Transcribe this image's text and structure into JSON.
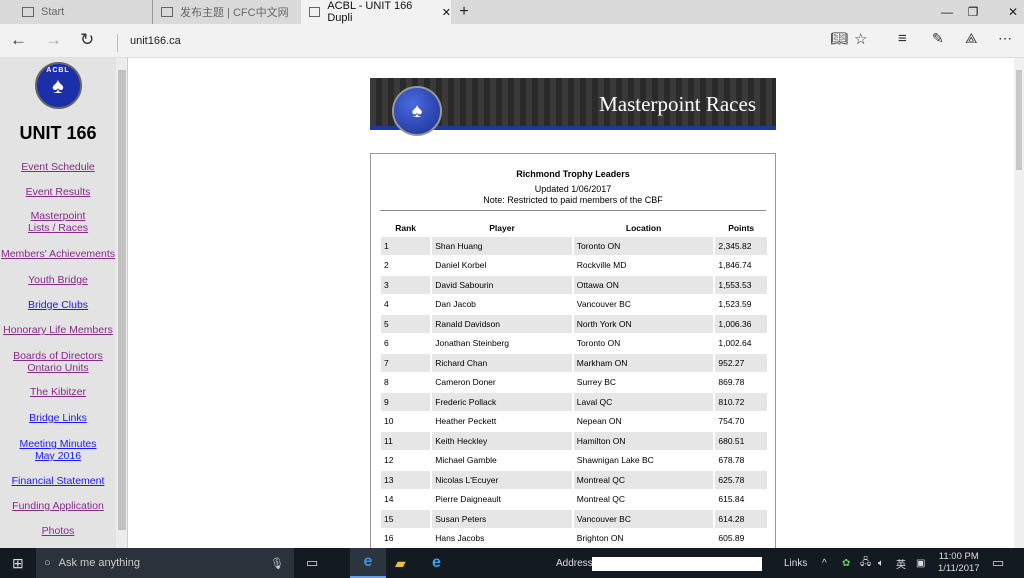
{
  "browser": {
    "tabs": [
      {
        "label": "Start"
      },
      {
        "label": "发布主题 | CFC中文网"
      },
      {
        "label": "ACBL - UNIT 166  Dupli"
      }
    ],
    "url": "unit166.ca"
  },
  "sidebar": {
    "logo_text": "ACBL",
    "title": "UNIT 166",
    "items": [
      {
        "label": "Event  Schedule",
        "visited": true
      },
      {
        "label": "Event  Results",
        "visited": true
      },
      {
        "label": "Masterpoint\nLists / Races",
        "visited": true
      },
      {
        "label": "Members' Achievements",
        "visited": true
      },
      {
        "label": "Youth Bridge",
        "visited": true
      },
      {
        "label": "Bridge Clubs",
        "visited": false
      },
      {
        "label": "Honorary Life Members",
        "visited": true
      },
      {
        "label": "Boards of Directors\nOntario Units",
        "visited": true
      },
      {
        "label": "The Kibitzer",
        "visited": true
      },
      {
        "label": "Bridge Links",
        "visited": false
      },
      {
        "label": "Meeting Minutes\nMay 2016",
        "visited": false
      },
      {
        "label": "Financial Statement",
        "visited": false
      },
      {
        "label": "Funding Application",
        "visited": true
      },
      {
        "label": "Photos",
        "visited": true
      }
    ]
  },
  "banner": {
    "logo_text": "ACBL",
    "title": "Masterpoint Races"
  },
  "leaders": {
    "title": "Richmond Trophy Leaders",
    "updated": "Updated 1/06/2017",
    "note": "Note: Restricted to paid members of the CBF",
    "columns": [
      "Rank",
      "Player",
      "Location",
      "Points"
    ],
    "rows": [
      [
        "1",
        "Shan Huang",
        "Toronto ON",
        "2,345.82"
      ],
      [
        "2",
        "Daniel Korbel",
        "Rockville MD",
        "1,846.74"
      ],
      [
        "3",
        "David Sabourin",
        "Ottawa ON",
        "1,553.53"
      ],
      [
        "4",
        "Dan Jacob",
        "Vancouver BC",
        "1,523.59"
      ],
      [
        "5",
        "Ranald Davidson",
        "North York ON",
        "1,006.36"
      ],
      [
        "6",
        "Jonathan Steinberg",
        "Toronto ON",
        "1,002.64"
      ],
      [
        "7",
        "Richard Chan",
        "Markham ON",
        "952.27"
      ],
      [
        "8",
        "Cameron Doner",
        "Surrey BC",
        "869.78"
      ],
      [
        "9",
        "Frederic Pollack",
        "Laval QC",
        "810.72"
      ],
      [
        "10",
        "Heather Peckett",
        "Nepean ON",
        "754.70"
      ],
      [
        "11",
        "Keith Heckley",
        "Hamilton ON",
        "680.51"
      ],
      [
        "12",
        "Michael Gamble",
        "Shawnigan Lake BC",
        "678.78"
      ],
      [
        "13",
        "Nicolas L'Ecuyer",
        "Montreal QC",
        "625.78"
      ],
      [
        "14",
        "Pierre Daigneault",
        "Montreal QC",
        "615.84"
      ],
      [
        "15",
        "Susan Peters",
        "Vancouver BC",
        "614.28"
      ],
      [
        "16",
        "Hans Jacobs",
        "Brighton ON",
        "605.89"
      ]
    ]
  },
  "taskbar": {
    "search_placeholder": "Ask me anything",
    "address_label": "Address",
    "links_label": "Links",
    "ime": "英",
    "time": "11:00 PM",
    "date": "1/11/2017"
  },
  "colors": {
    "visited": "#8a2a8a",
    "link": "#1a1aff",
    "banner_stripe": "#1a3aa0"
  }
}
